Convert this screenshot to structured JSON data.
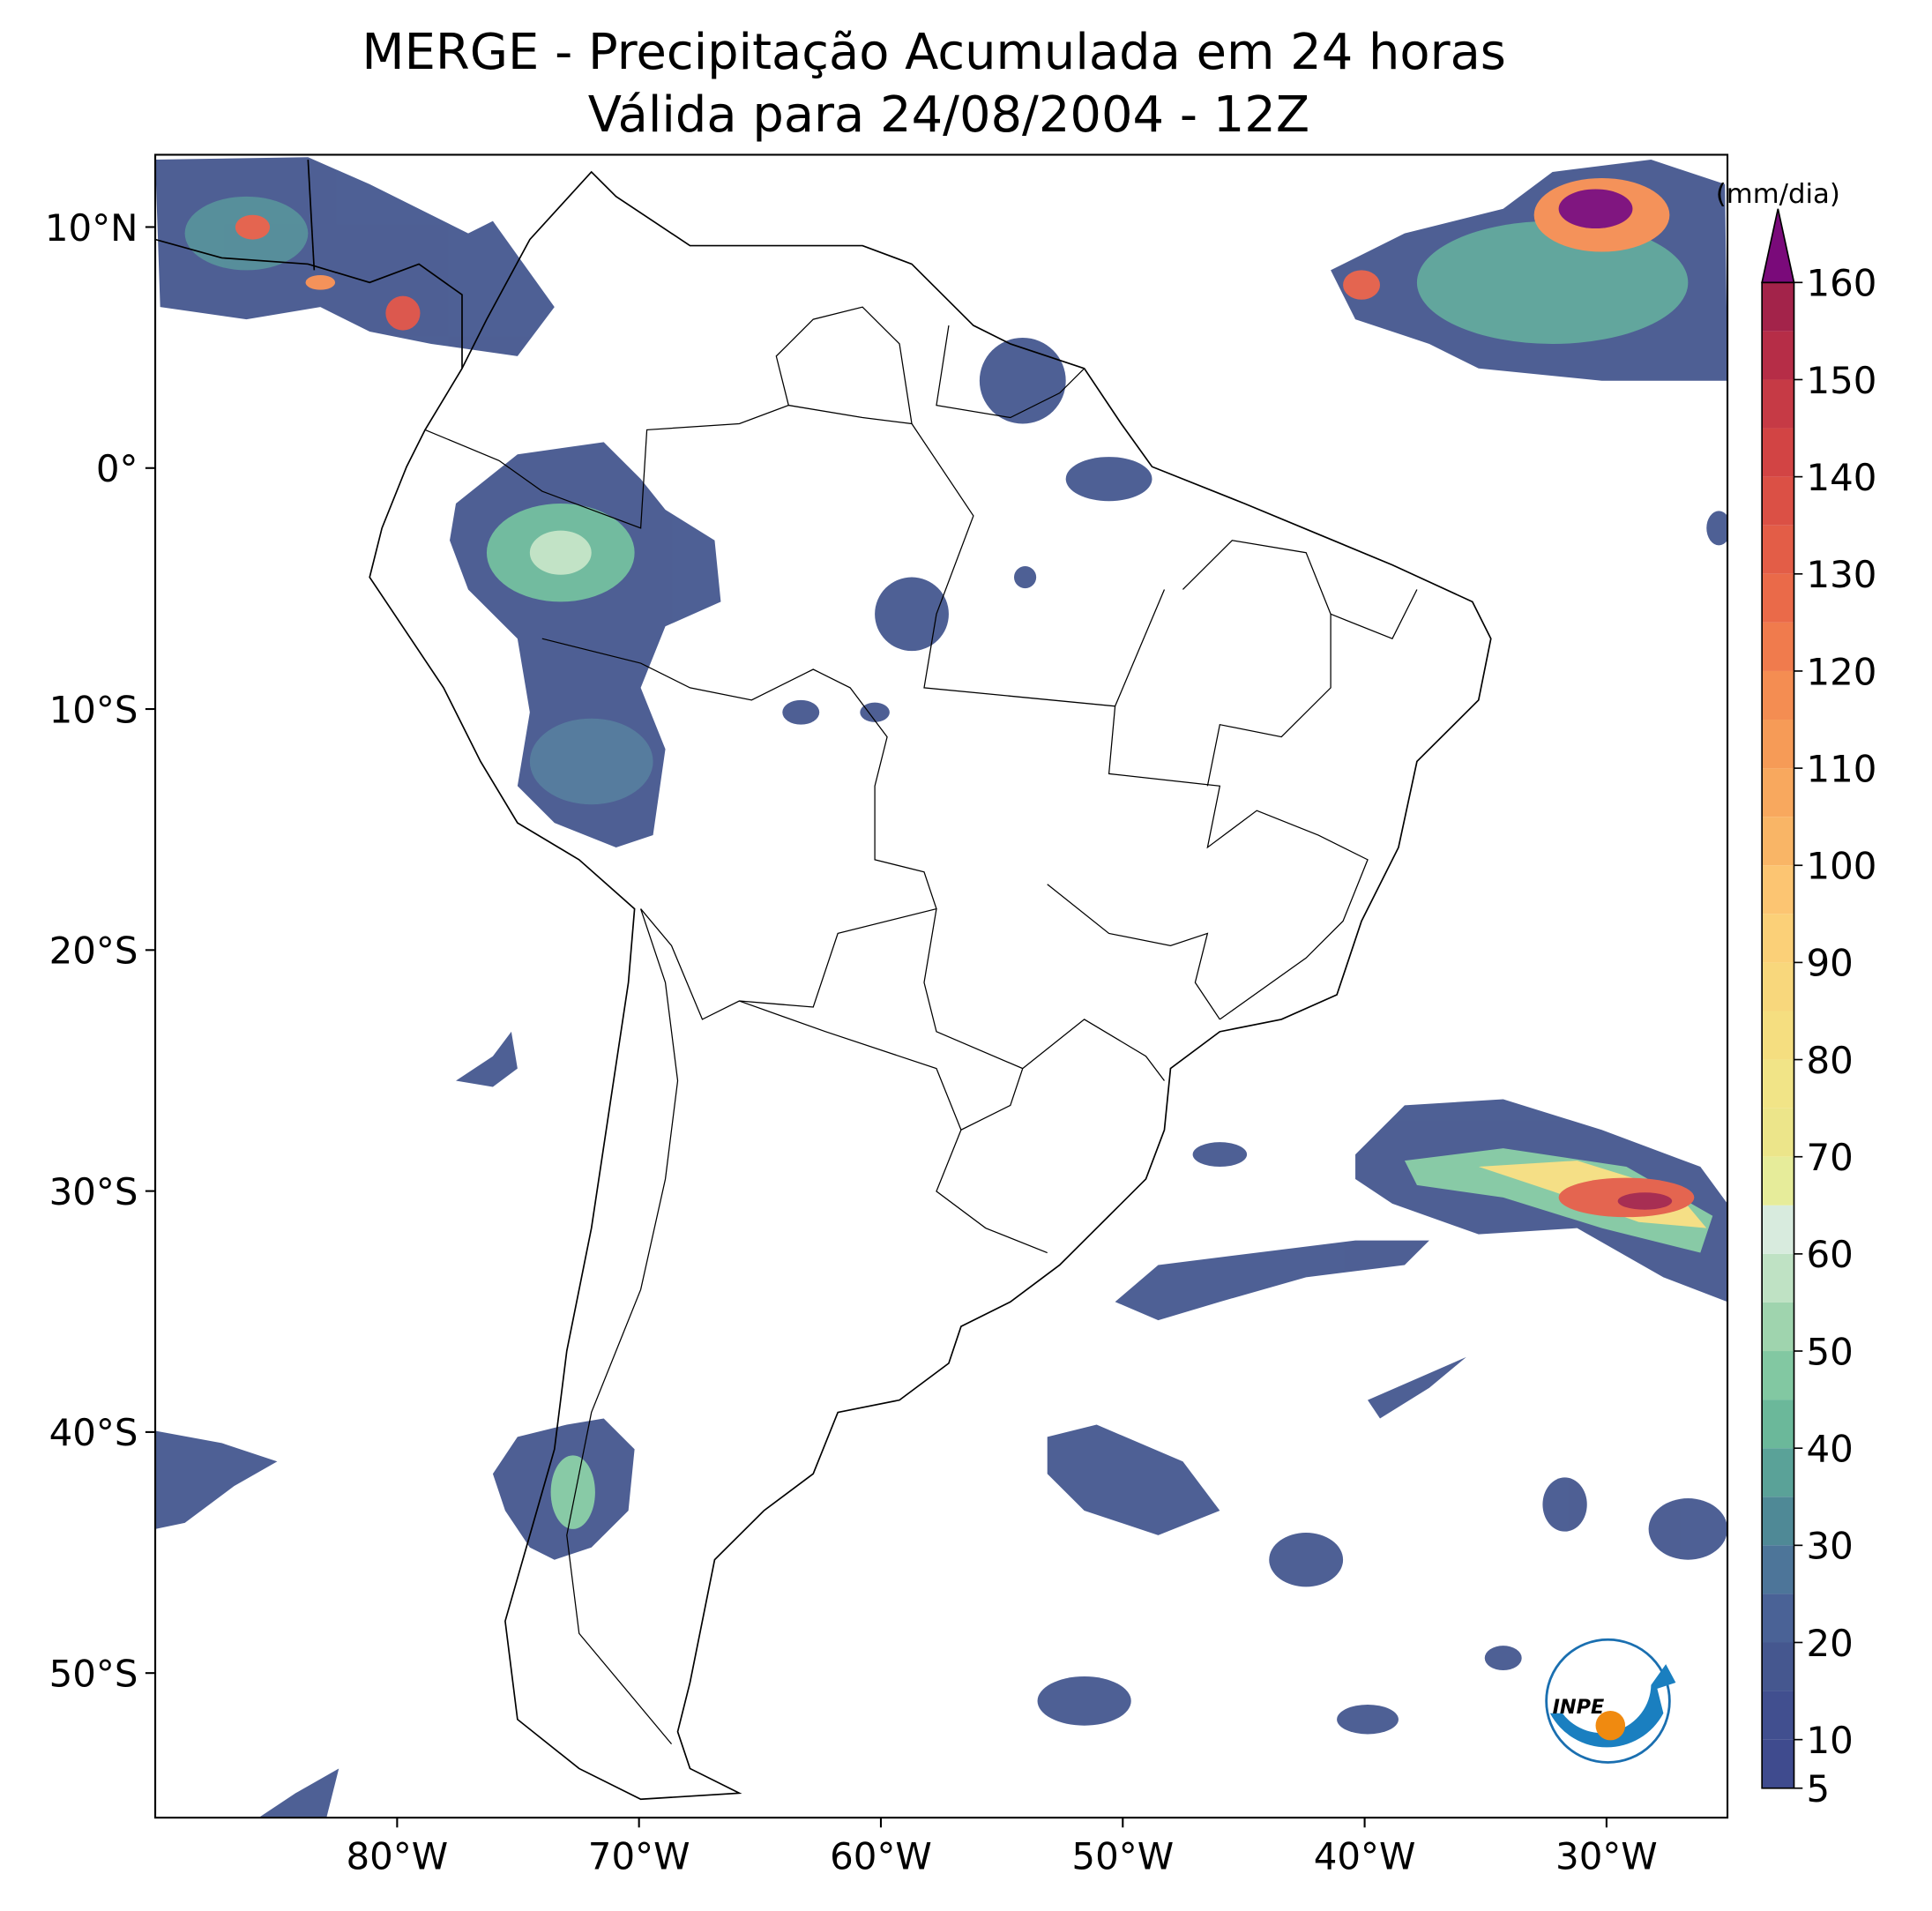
{
  "chart_data": {
    "type": "map",
    "title": "MERGE - Precipitação Acumulada em 24 horas",
    "subtitle": "Válida para 24/08/2004 - 12Z",
    "xlim": [
      -90,
      -25
    ],
    "ylim": [
      -56,
      13
    ],
    "xticks": [
      {
        "value": -80,
        "label": "80°W"
      },
      {
        "value": -70,
        "label": "70°W"
      },
      {
        "value": -60,
        "label": "60°W"
      },
      {
        "value": -50,
        "label": "50°W"
      },
      {
        "value": -40,
        "label": "40°W"
      },
      {
        "value": -30,
        "label": "30°W"
      }
    ],
    "yticks": [
      {
        "value": 10,
        "label": "10°N"
      },
      {
        "value": 0,
        "label": "0°"
      },
      {
        "value": -10,
        "label": "10°S"
      },
      {
        "value": -20,
        "label": "20°S"
      },
      {
        "value": -30,
        "label": "30°S"
      },
      {
        "value": -40,
        "label": "40°S"
      },
      {
        "value": -50,
        "label": "50°S"
      }
    ],
    "colorbar": {
      "label": "(mm/dia)",
      "ticks": [
        5,
        10,
        20,
        30,
        40,
        50,
        60,
        70,
        80,
        90,
        100,
        110,
        120,
        130,
        140,
        150,
        160
      ],
      "levels": [
        5,
        10,
        15,
        20,
        25,
        30,
        35,
        40,
        45,
        50,
        55,
        60,
        65,
        70,
        75,
        80,
        85,
        90,
        95,
        100,
        105,
        110,
        115,
        120,
        125,
        130,
        135,
        140,
        145,
        150,
        155,
        160
      ],
      "colors": [
        "#3f4b8e",
        "#414f8f",
        "#45578f",
        "#4a6296",
        "#4d7599",
        "#4f8996",
        "#5aa298",
        "#6bb89a",
        "#82c8a2",
        "#9fd4ae",
        "#bfe2c4",
        "#d8ebde",
        "#e6ec9a",
        "#ece58a",
        "#f1e487",
        "#f5de80",
        "#f8d77c",
        "#fbd078",
        "#fcc572",
        "#f9b566",
        "#f8a85e",
        "#f69b57",
        "#f48d52",
        "#f07b4d",
        "#ea6a49",
        "#e35d47",
        "#db5045",
        "#d24444",
        "#c63a45",
        "#b62d47",
        "#a3234a"
      ],
      "extend_color": "#7a0a7a"
    },
    "logo": "INPE"
  }
}
